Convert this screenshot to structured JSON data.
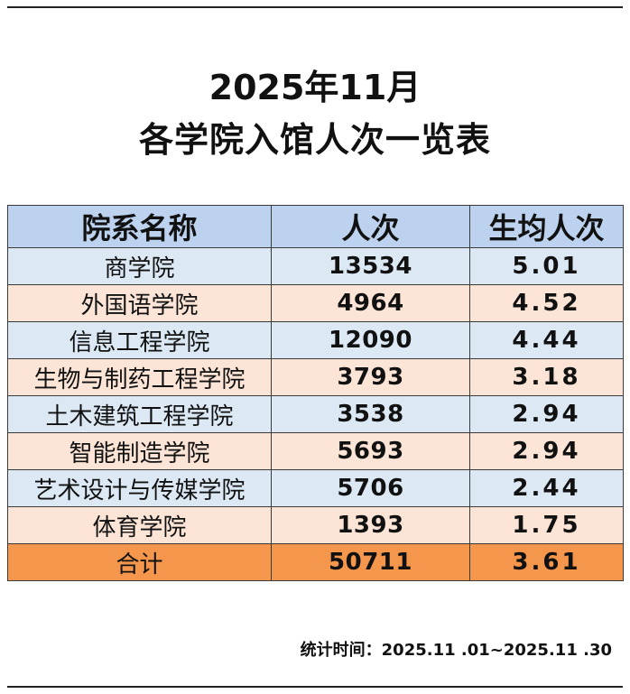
{
  "title": {
    "line1": "2025年11月",
    "line2": "各学院入馆人次一览表"
  },
  "table": {
    "headers": [
      "院系名称",
      "人次",
      "生均人次"
    ],
    "rows": [
      {
        "name": "商学院",
        "visits": "13534",
        "avg": "5.01"
      },
      {
        "name": "外国语学院",
        "visits": "4964",
        "avg": "4.52"
      },
      {
        "name": "信息工程学院",
        "visits": "12090",
        "avg": "4.44"
      },
      {
        "name": "生物与制药工程学院",
        "visits": "3793",
        "avg": "3.18"
      },
      {
        "name": "土木建筑工程学院",
        "visits": "3538",
        "avg": "2.94"
      },
      {
        "name": "智能制造学院",
        "visits": "5693",
        "avg": "2.94"
      },
      {
        "name": "艺术设计与传媒学院",
        "visits": "5706",
        "avg": "2.44"
      },
      {
        "name": "体育学院",
        "visits": "1393",
        "avg": "1.75"
      }
    ],
    "total": {
      "name": "合计",
      "visits": "50711",
      "avg": "3.61"
    }
  },
  "footnote": "统计时间：2025.11 .01~2025.11 .30",
  "colors": {
    "header_bg": "#bcd2ee",
    "row_blue": "#dce9f5",
    "row_peach": "#fce4d6",
    "total_bg": "#f4964b"
  }
}
